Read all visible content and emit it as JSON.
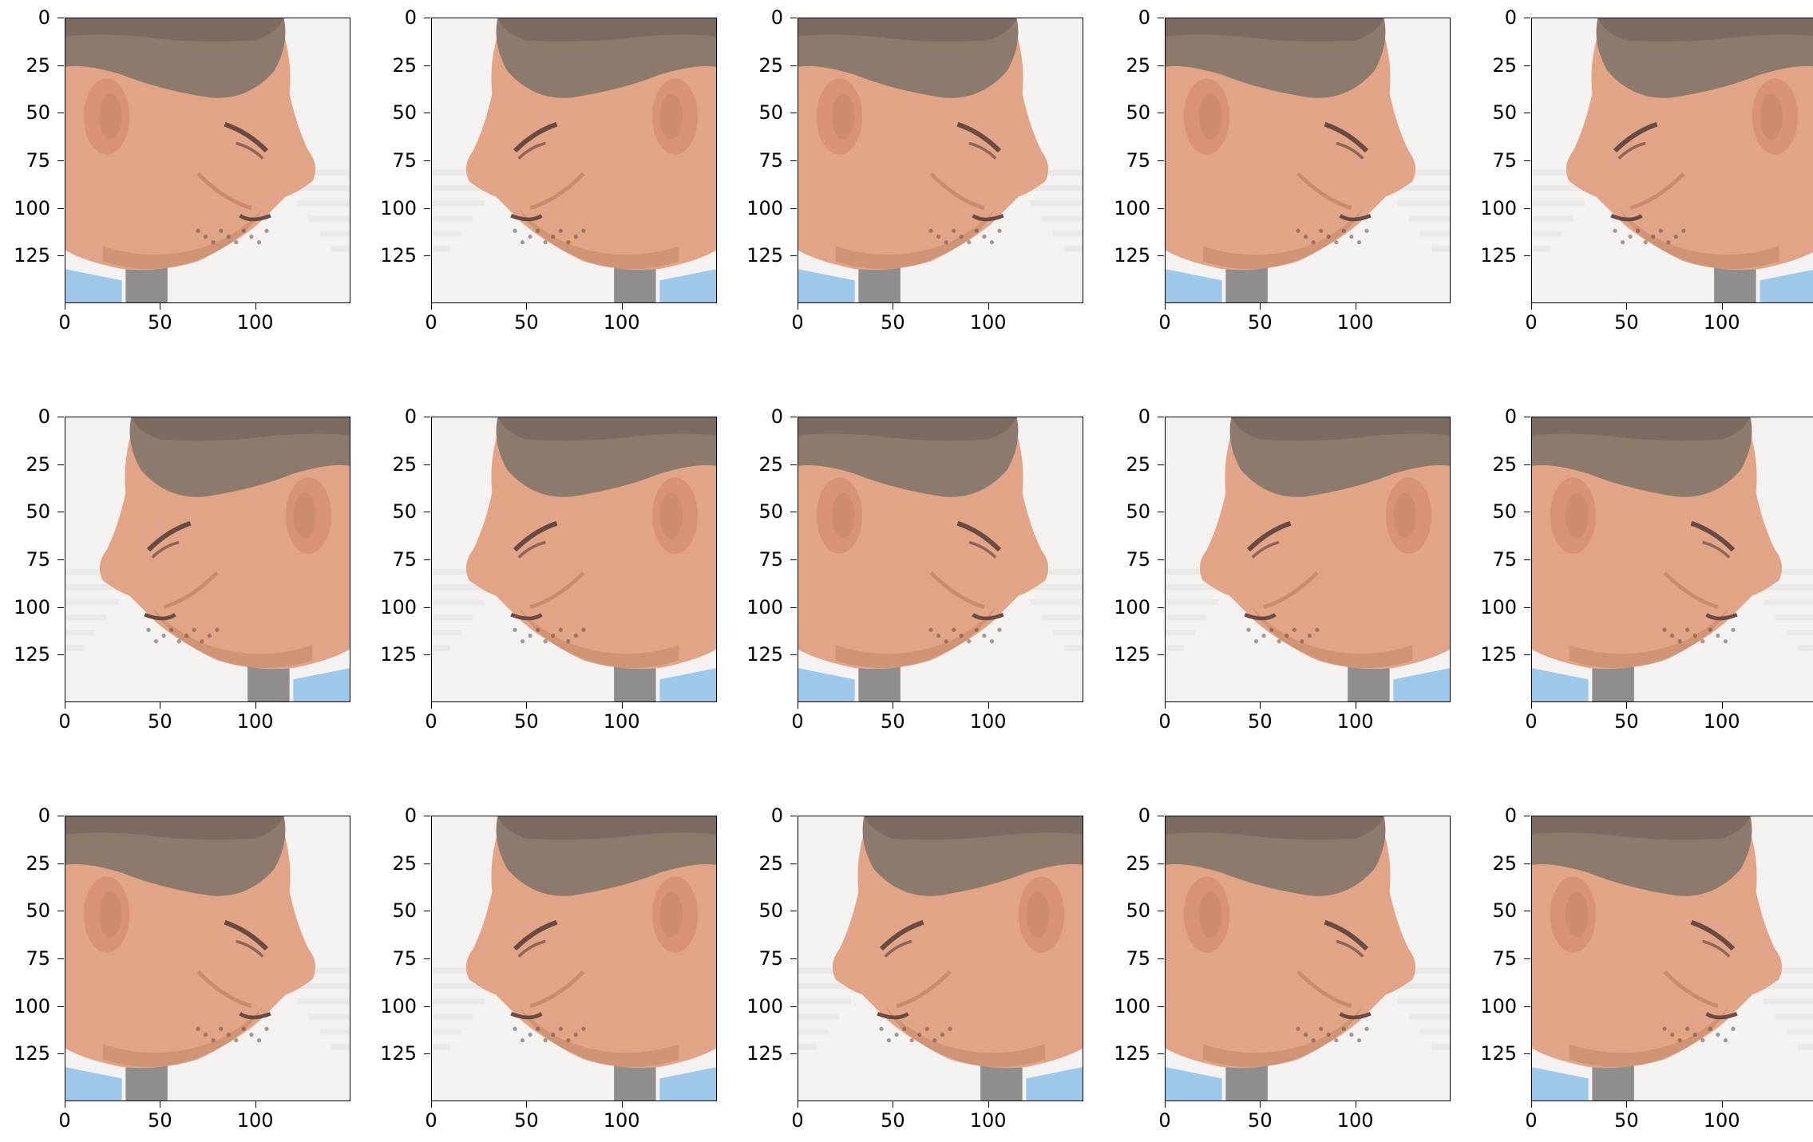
{
  "figure": {
    "rows": 3,
    "cols": 5,
    "image_extent": [
      0,
      150
    ],
    "y_ticks": [
      "0",
      "25",
      "50",
      "75",
      "100",
      "125"
    ],
    "x_ticks": [
      "0",
      "50",
      "100"
    ],
    "y_tick_values": [
      0,
      25,
      50,
      75,
      100,
      125
    ],
    "x_tick_values": [
      0,
      50,
      100
    ],
    "colors": {
      "skin": "#e2a486",
      "skin_shadow": "#c98b6c",
      "hair": "#8c7a6d",
      "hair_dark": "#6f6058",
      "background": "#f3f2f1",
      "collar": "#9ec8ea",
      "dark_streak": "#3c3a3c",
      "ear": "#d89376",
      "feature_dark": "#6a4b43"
    }
  },
  "panels": [
    {
      "facing": "right",
      "ear": "left"
    },
    {
      "facing": "left",
      "ear": "right"
    },
    {
      "facing": "right",
      "ear": "left"
    },
    {
      "facing": "right",
      "ear": "left"
    },
    {
      "facing": "left",
      "ear": "right"
    },
    {
      "facing": "left",
      "ear": "right"
    },
    {
      "facing": "left",
      "ear": "right"
    },
    {
      "facing": "right",
      "ear": "left"
    },
    {
      "facing": "left",
      "ear": "right"
    },
    {
      "facing": "right",
      "ear": "left"
    },
    {
      "facing": "right",
      "ear": "left"
    },
    {
      "facing": "left",
      "ear": "right"
    },
    {
      "facing": "left",
      "ear": "right"
    },
    {
      "facing": "right",
      "ear": "left"
    },
    {
      "facing": "right",
      "ear": "left"
    }
  ]
}
